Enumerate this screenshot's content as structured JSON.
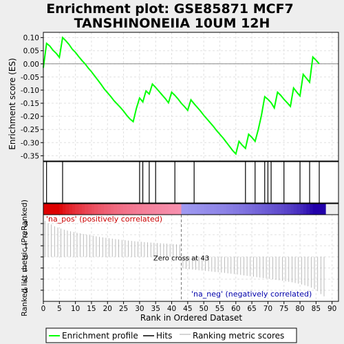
{
  "title_line1": "Enrichment plot: GSE85871 MCF7",
  "title_line2": "TANSHINONEIIA 10UM 12H",
  "chart_data": {
    "type": "line",
    "x_label": "Rank in Ordered Dataset",
    "es_label": "Enrichment score (ES)",
    "metric_label": "Ranked list metric (PreRanked)",
    "x_range": [
      0,
      92
    ],
    "x_ticks": [
      0,
      5,
      10,
      15,
      20,
      25,
      30,
      35,
      40,
      45,
      50,
      55,
      60,
      65,
      70,
      75,
      80,
      85,
      90
    ],
    "es_range": [
      -0.37,
      0.12
    ],
    "es_ticks": [
      0.1,
      0.05,
      0.0,
      -0.05,
      -0.1,
      -0.15,
      -0.2,
      -0.25,
      -0.3,
      -0.35
    ],
    "metric_range": [
      -4,
      3.8
    ],
    "metric_ticks": [
      3,
      2,
      1,
      0,
      -1,
      -2,
      -3
    ],
    "grid": true,
    "es_curve": [
      [
        0,
        -0.015
      ],
      [
        1,
        0.078
      ],
      [
        2,
        0.068
      ],
      [
        3,
        0.052
      ],
      [
        4,
        0.04
      ],
      [
        5,
        0.025
      ],
      [
        6,
        0.1
      ],
      [
        7,
        0.088
      ],
      [
        8,
        0.074
      ],
      [
        9,
        0.056
      ],
      [
        10,
        0.044
      ],
      [
        11,
        0.028
      ],
      [
        12,
        0.013
      ],
      [
        13,
        0.0
      ],
      [
        14,
        -0.016
      ],
      [
        15,
        -0.03
      ],
      [
        16,
        -0.046
      ],
      [
        17,
        -0.062
      ],
      [
        18,
        -0.078
      ],
      [
        19,
        -0.096
      ],
      [
        20,
        -0.11
      ],
      [
        21,
        -0.124
      ],
      [
        22,
        -0.14
      ],
      [
        23,
        -0.153
      ],
      [
        24,
        -0.166
      ],
      [
        25,
        -0.18
      ],
      [
        26,
        -0.196
      ],
      [
        27,
        -0.21
      ],
      [
        28,
        -0.22
      ],
      [
        29,
        -0.17
      ],
      [
        30,
        -0.13
      ],
      [
        31,
        -0.145
      ],
      [
        32,
        -0.103
      ],
      [
        33,
        -0.115
      ],
      [
        34,
        -0.077
      ],
      [
        35,
        -0.09
      ],
      [
        36,
        -0.104
      ],
      [
        37,
        -0.118
      ],
      [
        38,
        -0.132
      ],
      [
        39,
        -0.148
      ],
      [
        40,
        -0.108
      ],
      [
        41,
        -0.12
      ],
      [
        42,
        -0.134
      ],
      [
        43,
        -0.15
      ],
      [
        44,
        -0.163
      ],
      [
        45,
        -0.177
      ],
      [
        46,
        -0.137
      ],
      [
        47,
        -0.152
      ],
      [
        48,
        -0.166
      ],
      [
        49,
        -0.18
      ],
      [
        50,
        -0.196
      ],
      [
        51,
        -0.21
      ],
      [
        52,
        -0.224
      ],
      [
        53,
        -0.238
      ],
      [
        54,
        -0.254
      ],
      [
        55,
        -0.268
      ],
      [
        56,
        -0.282
      ],
      [
        57,
        -0.298
      ],
      [
        58,
        -0.314
      ],
      [
        59,
        -0.33
      ],
      [
        60,
        -0.343
      ],
      [
        61,
        -0.295
      ],
      [
        62,
        -0.31
      ],
      [
        63,
        -0.322
      ],
      [
        64,
        -0.268
      ],
      [
        65,
        -0.28
      ],
      [
        66,
        -0.295
      ],
      [
        67,
        -0.25
      ],
      [
        68,
        -0.195
      ],
      [
        69,
        -0.125
      ],
      [
        70,
        -0.135
      ],
      [
        71,
        -0.148
      ],
      [
        72,
        -0.168
      ],
      [
        73,
        -0.108
      ],
      [
        74,
        -0.12
      ],
      [
        75,
        -0.135
      ],
      [
        76,
        -0.148
      ],
      [
        77,
        -0.162
      ],
      [
        78,
        -0.092
      ],
      [
        79,
        -0.108
      ],
      [
        80,
        -0.122
      ],
      [
        81,
        -0.04
      ],
      [
        82,
        -0.055
      ],
      [
        83,
        -0.07
      ],
      [
        84,
        0.026
      ],
      [
        85,
        0.014
      ],
      [
        86,
        0.0
      ]
    ],
    "hits": [
      1,
      6,
      30,
      31,
      33,
      35,
      41,
      47,
      63,
      66,
      69,
      70,
      71,
      75,
      80,
      83,
      86
    ],
    "metric": [
      3.25,
      3.0,
      2.92,
      2.75,
      2.65,
      2.55,
      2.45,
      2.37,
      2.3,
      2.24,
      2.17,
      2.12,
      2.06,
      2.0,
      1.95,
      1.9,
      1.85,
      1.8,
      1.76,
      1.72,
      1.68,
      1.64,
      1.6,
      1.57,
      1.53,
      1.5,
      1.47,
      1.44,
      1.41,
      1.38,
      1.36,
      1.33,
      1.31,
      1.29,
      1.27,
      1.25,
      1.23,
      1.21,
      1.19,
      1.17,
      1.15,
      1.13,
      1.11,
      -1.05,
      -1.08,
      -1.11,
      -1.14,
      -1.17,
      -1.2,
      -1.23,
      -1.26,
      -1.29,
      -1.32,
      -1.35,
      -1.38,
      -1.41,
      -1.44,
      -1.48,
      -1.51,
      -1.55,
      -1.58,
      -1.62,
      -1.66,
      -1.7,
      -1.74,
      -1.78,
      -1.82,
      -1.86,
      -1.9,
      -1.94,
      -1.98,
      -2.02,
      -2.06,
      -2.1,
      -2.14,
      -2.19,
      -2.24,
      -2.29,
      -2.35,
      -2.41,
      -2.48,
      -2.56,
      -2.65,
      -2.76,
      -2.9,
      -3.08,
      -3.35,
      -3.55
    ],
    "zero_cross": 43,
    "zero_cross_label": "Zero cross at 43",
    "pos_label": "'na_pos' (positively correlated)",
    "neg_label": "'na_neg' (negatively correlated)",
    "legend": [
      "Enrichment profile",
      "Hits",
      "Ranking metric scores"
    ],
    "colors": {
      "es_line": "#00ff00",
      "hit_line": "#000000",
      "metric_line": "#aaaaaa",
      "pos_strong": "#dd0000",
      "pos_weak": "#ffc0e8",
      "neg_weak": "#b8b8ff",
      "neg_strong": "#2200aa"
    }
  }
}
